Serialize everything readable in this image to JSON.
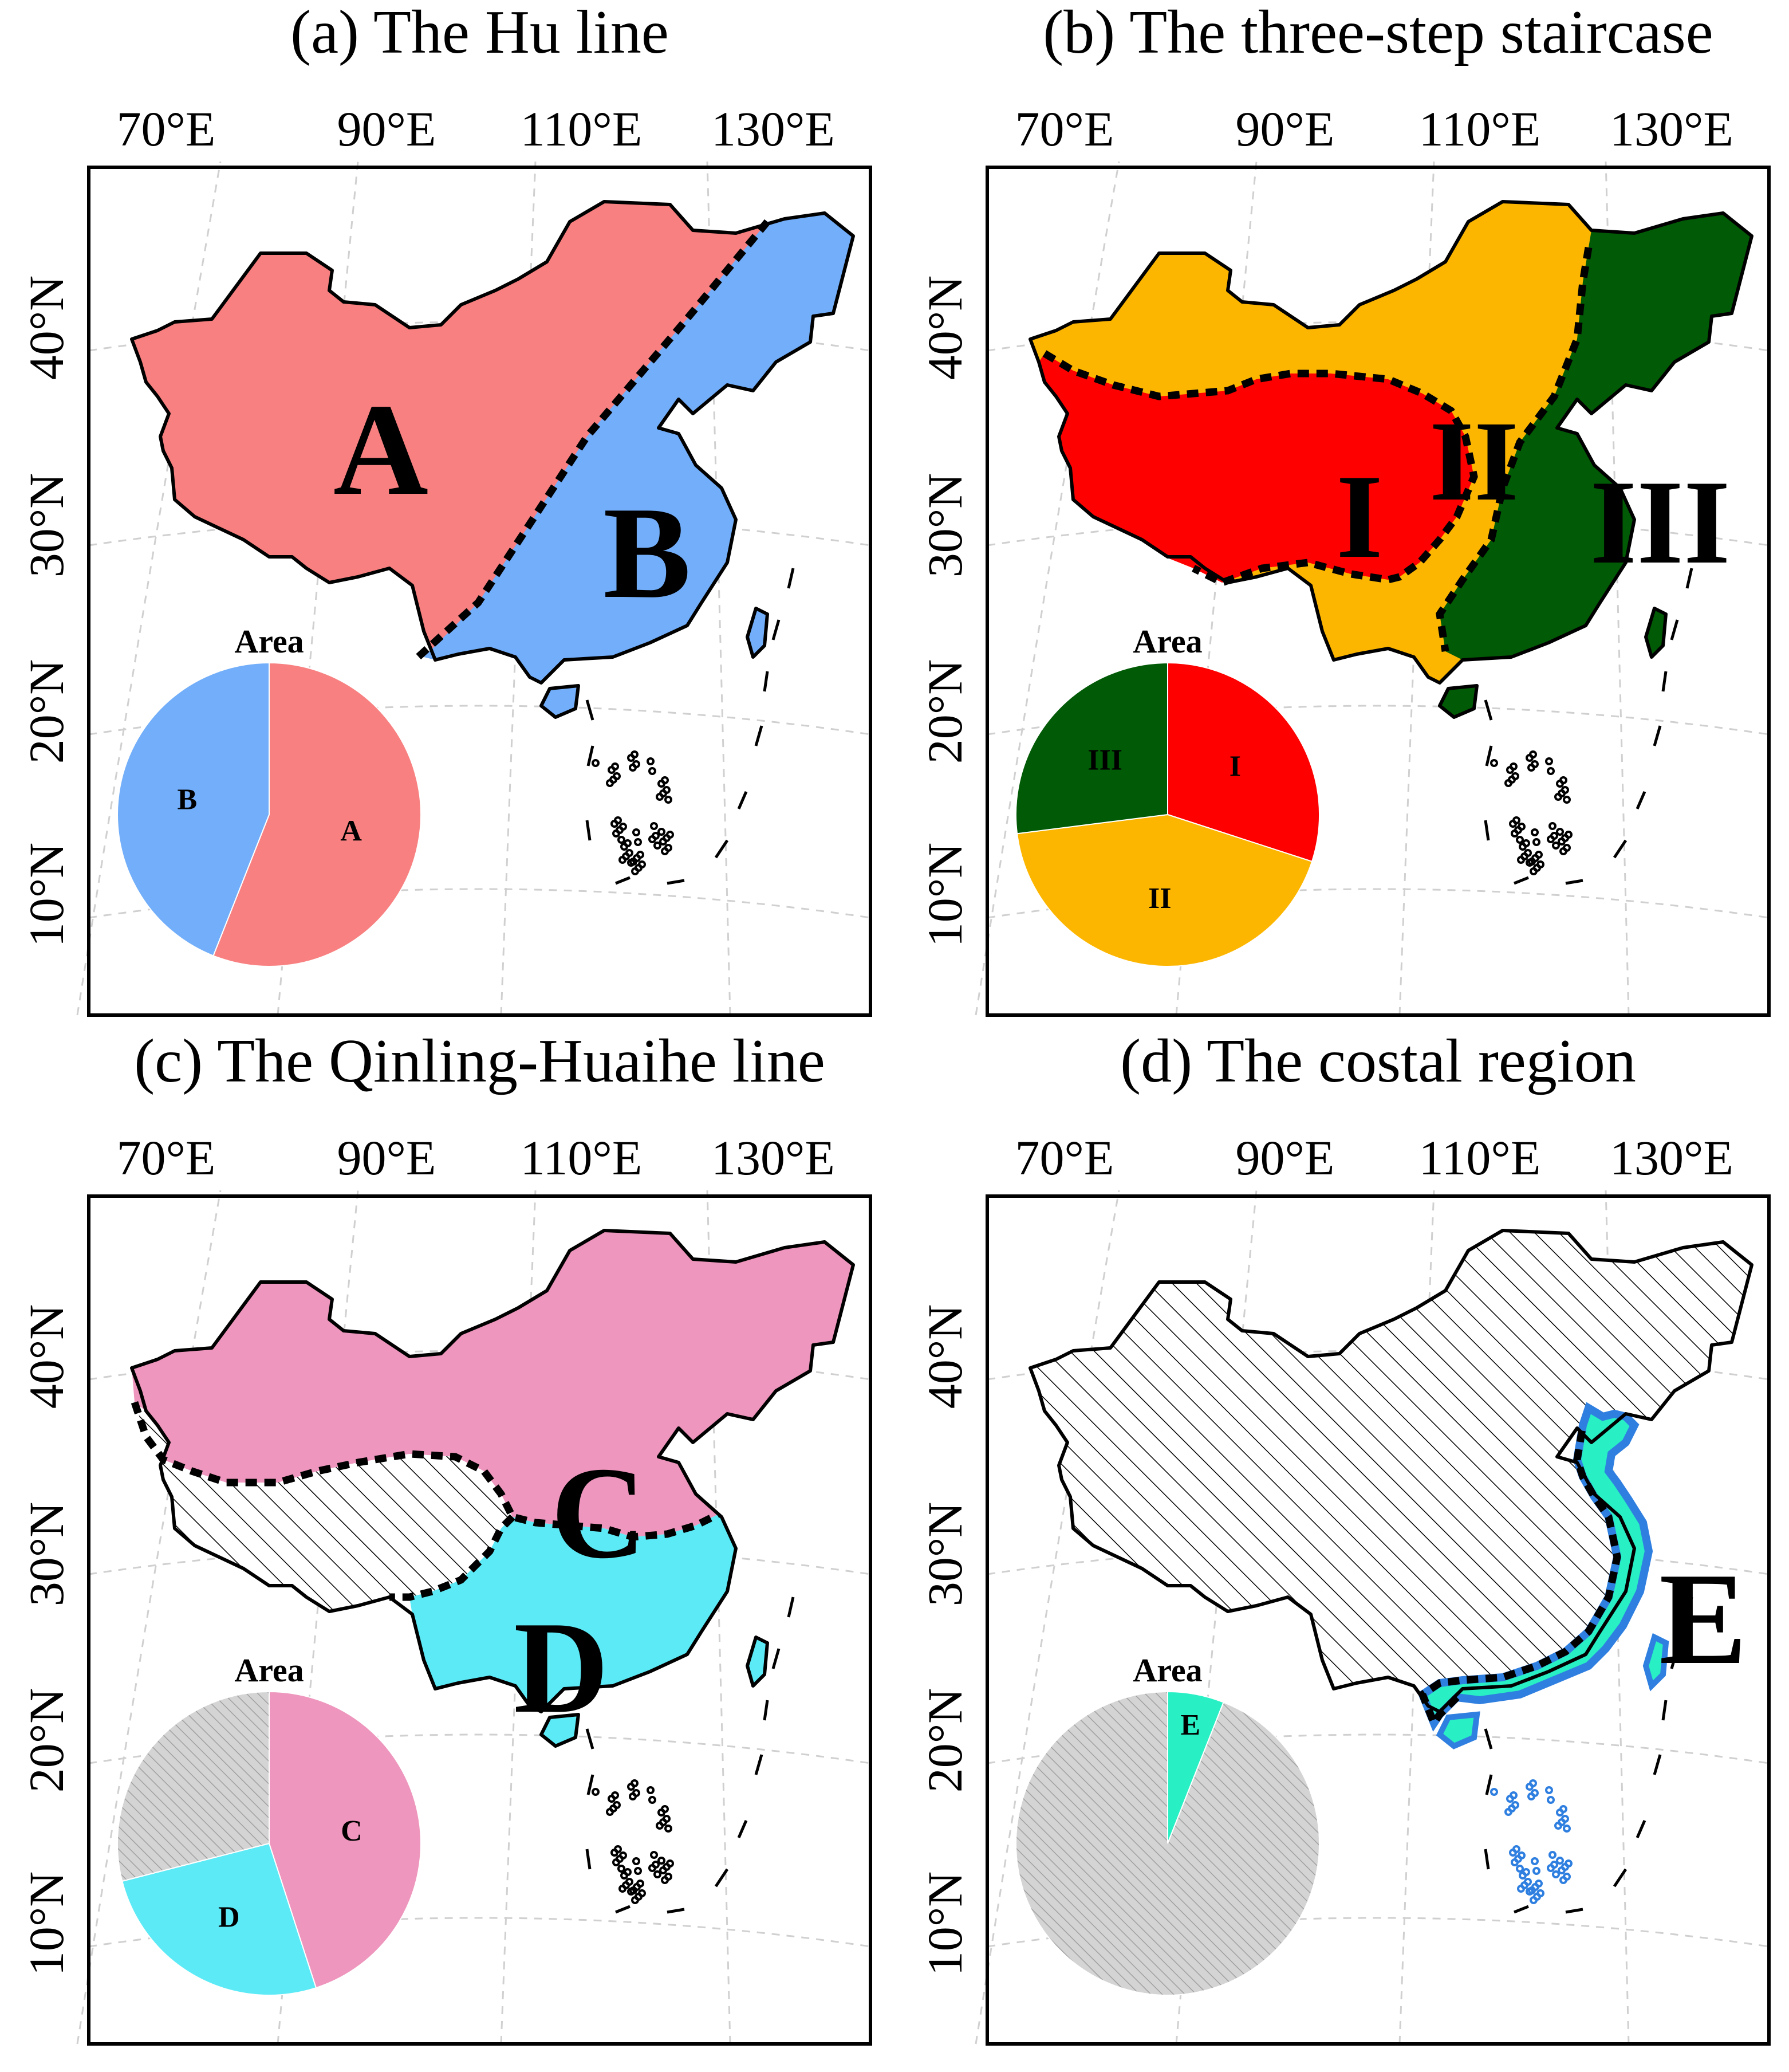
{
  "lon_labels": [
    "70°E",
    "90°E",
    "110°E",
    "130°E"
  ],
  "lat_labels": [
    "40°N",
    "30°N",
    "20°N",
    "10°N"
  ],
  "pie_title": "Area",
  "colors": {
    "hatch_bg": "#ffffff",
    "hatch_line": "#000000",
    "pie_hatch": "#cfcfcf",
    "coast_blue": "#2f7fe0"
  },
  "panels": [
    {
      "title": "(a) The Hu line",
      "regions": [
        {
          "label": "A",
          "color": "#f88080"
        },
        {
          "label": "B",
          "color": "#72aef9"
        }
      ],
      "pie": [
        {
          "label": "A",
          "share": 0.56,
          "color": "#f88080"
        },
        {
          "label": "B",
          "share": 0.44,
          "color": "#72aef9"
        }
      ]
    },
    {
      "title": "(b) The three-step staircase",
      "regions": [
        {
          "label": "I",
          "color": "#fe0000"
        },
        {
          "label": "II",
          "color": "#fdb600"
        },
        {
          "label": "III",
          "color": "#015a05"
        }
      ],
      "pie": [
        {
          "label": "I",
          "share": 0.3,
          "color": "#fe0000"
        },
        {
          "label": "II",
          "share": 0.43,
          "color": "#fdb600"
        },
        {
          "label": "III",
          "share": 0.27,
          "color": "#015a05"
        }
      ]
    },
    {
      "title": "(c) The Qinling-Huaihe line",
      "regions": [
        {
          "label": "C",
          "color": "#ee96bd"
        },
        {
          "label": "D",
          "color": "#5ceaf6"
        }
      ],
      "pie": [
        {
          "label": "C",
          "share": 0.45,
          "color": "#ee96bd"
        },
        {
          "label": "D",
          "share": 0.26,
          "color": "#5ceaf6"
        },
        {
          "label": "",
          "share": 0.29,
          "color": "hatch"
        }
      ]
    },
    {
      "title": "(d) The costal region",
      "regions": [
        {
          "label": "E",
          "color": "#28f0c4"
        }
      ],
      "pie": [
        {
          "label": "E",
          "share": 0.06,
          "color": "#28f0c4"
        },
        {
          "label": "",
          "share": 0.94,
          "color": "hatch"
        }
      ]
    }
  ]
}
